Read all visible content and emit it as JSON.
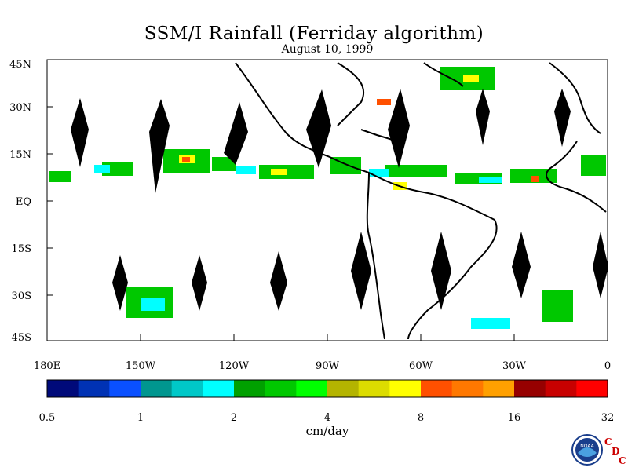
{
  "title": "SSM/I Rainfall (Ferriday algorithm)",
  "subtitle": "August 10, 1999",
  "lat_labels": [
    "45N",
    "30N",
    "15N",
    "EQ",
    "15S",
    "30S",
    "45S"
  ],
  "lon_labels": [
    "180E",
    "150W",
    "120W",
    "90W",
    "60W",
    "30W",
    "0"
  ],
  "colorbar": {
    "ticks": [
      "0.5",
      "1",
      "2",
      "4",
      "8",
      "16",
      "32"
    ],
    "unit": "cm/day",
    "colors": [
      "#000a7a",
      "#0032b4",
      "#0a50ff",
      "#00968f",
      "#00c8c8",
      "#00ffff",
      "#00a000",
      "#00c800",
      "#00ff00",
      "#b4b400",
      "#dcdc00",
      "#ffff00",
      "#ff5000",
      "#ff7800",
      "#ffa000",
      "#960000",
      "#c80000",
      "#ff0000"
    ]
  },
  "logo": {
    "text": "NOAA",
    "agency": [
      "C",
      "D",
      "C"
    ]
  }
}
